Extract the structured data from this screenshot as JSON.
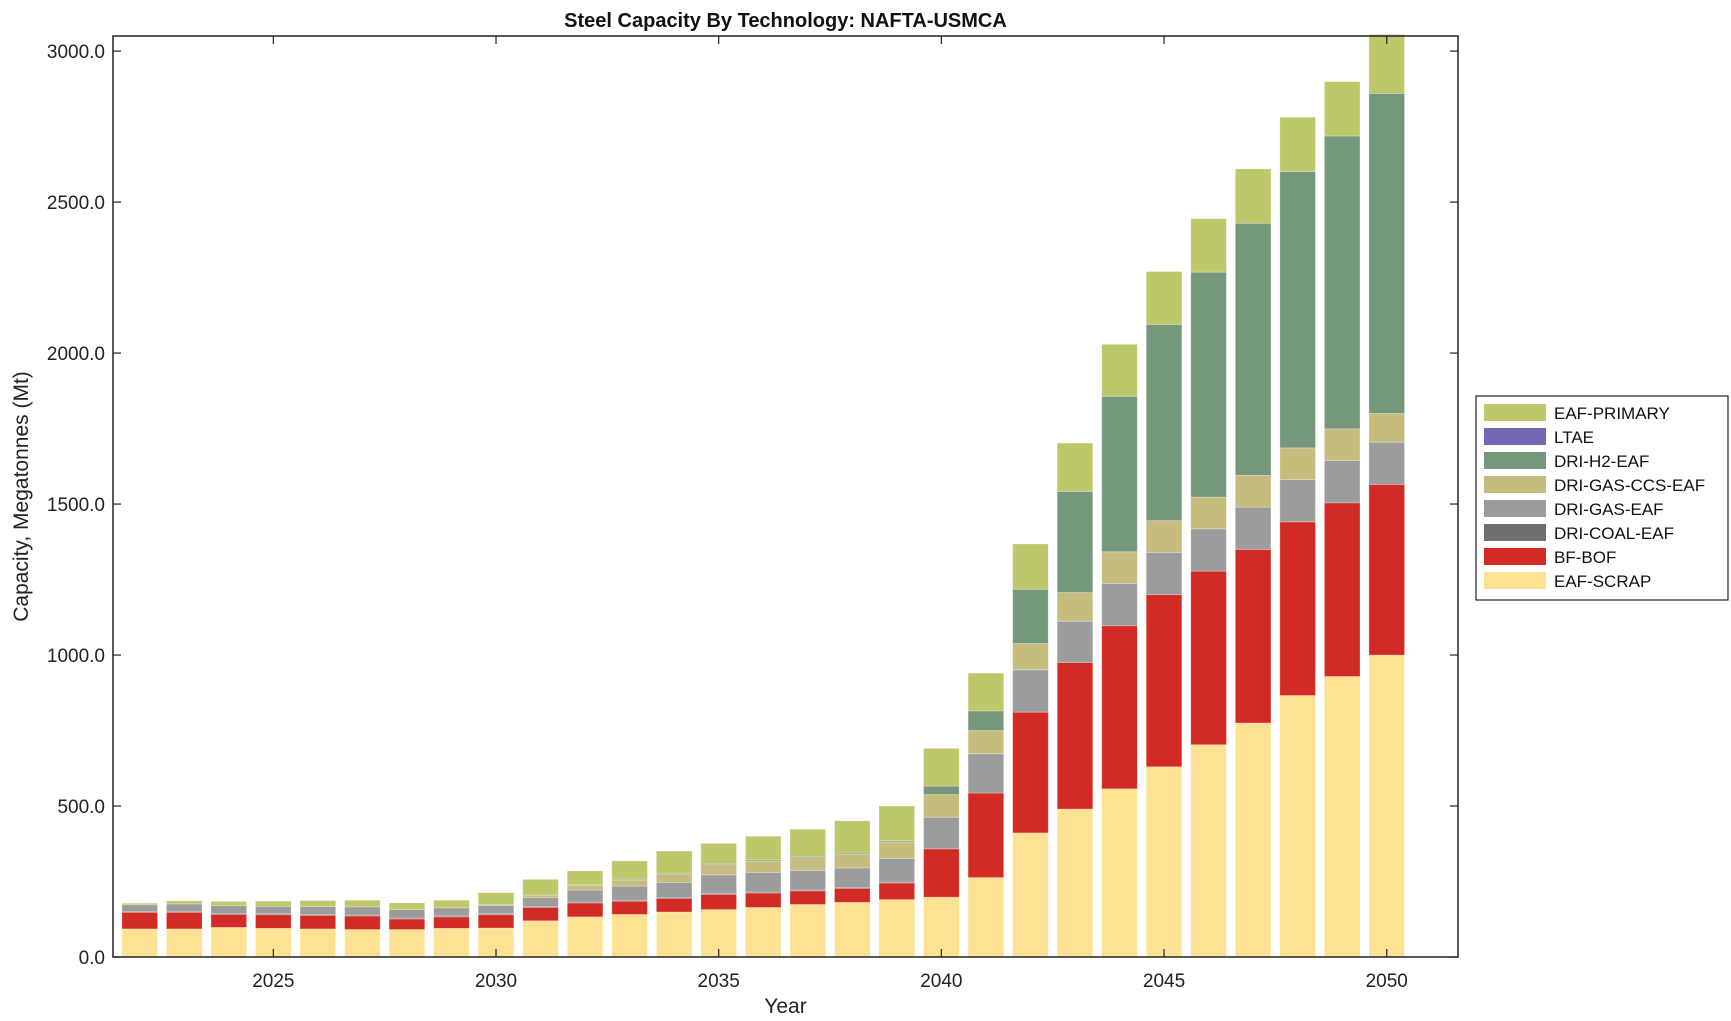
{
  "chart_data": {
    "type": "bar",
    "stacked": true,
    "title": "Steel Capacity By Technology: NAFTA-USMCA",
    "xlabel": "Year",
    "ylabel": "Capacity, Megatonnes (Mt)",
    "ylim": [
      0,
      3050
    ],
    "yticks": [
      0,
      500,
      1000,
      1500,
      2000,
      2500,
      3000
    ],
    "ytick_labels": [
      "0.0",
      "500.0",
      "1000.0",
      "1500.0",
      "2000.0",
      "2500.0",
      "3000.0"
    ],
    "xlim": [
      2021.4,
      2051.6
    ],
    "xticks": [
      2025,
      2030,
      2035,
      2040,
      2045,
      2050
    ],
    "xtick_labels": [
      "2025",
      "2030",
      "2035",
      "2040",
      "2045",
      "2050"
    ],
    "grid": false,
    "legend_position": "right",
    "categories": [
      2022,
      2023,
      2024,
      2025,
      2026,
      2027,
      2028,
      2029,
      2030,
      2031,
      2032,
      2033,
      2034,
      2035,
      2036,
      2037,
      2038,
      2039,
      2040,
      2041,
      2042,
      2043,
      2044,
      2045,
      2046,
      2047,
      2048,
      2049,
      2050
    ],
    "series": [
      {
        "name": "EAF-SCRAP",
        "color": "#FDE293",
        "values": [
          93,
          93,
          98,
          95,
          93,
          91,
          91,
          95,
          96,
          120,
          133,
          141,
          149,
          157,
          164,
          174,
          181,
          190,
          198,
          263,
          411,
          490,
          557,
          630,
          703,
          775,
          866,
          929,
          1000
        ]
      },
      {
        "name": "BF-BOF",
        "color": "#D22A24",
        "values": [
          55,
          55,
          43,
          45,
          45,
          45,
          35,
          38,
          44,
          44,
          46,
          44,
          45,
          50,
          48,
          45,
          46,
          55,
          160,
          280,
          400,
          485,
          540,
          570,
          575,
          575,
          575,
          575,
          565
        ]
      },
      {
        "name": "DRI-COAL-EAF",
        "color": "#707070",
        "values": [
          3,
          3,
          3,
          3,
          3,
          3,
          3,
          3,
          3,
          3,
          3,
          3,
          3,
          3,
          3,
          3,
          3,
          3,
          0,
          0,
          0,
          0,
          0,
          0,
          0,
          0,
          0,
          0,
          0
        ]
      },
      {
        "name": "DRI-GAS-EAF",
        "color": "#9C9C9C",
        "values": [
          22,
          25,
          26,
          25,
          26,
          27,
          28,
          27,
          28,
          30,
          40,
          47,
          50,
          62,
          65,
          65,
          65,
          78,
          105,
          130,
          140,
          137,
          140,
          140,
          140,
          140,
          140,
          140,
          140
        ]
      },
      {
        "name": "DRI-GAS-CCS-EAF",
        "color": "#C6BC7E",
        "values": [
          0,
          0,
          0,
          0,
          0,
          0,
          0,
          0,
          2,
          8,
          15,
          20,
          28,
          34,
          38,
          42,
          45,
          55,
          75,
          77,
          87,
          95,
          105,
          105,
          105,
          105,
          105,
          105,
          95
        ]
      },
      {
        "name": "DRI-H2-EAF",
        "color": "#75987C",
        "values": [
          0,
          0,
          0,
          0,
          0,
          0,
          0,
          0,
          0,
          0,
          2,
          3,
          3,
          4,
          4,
          4,
          4,
          4,
          28,
          65,
          180,
          335,
          515,
          650,
          745,
          835,
          915,
          970,
          1060
        ]
      },
      {
        "name": "LTAE",
        "color": "#7268B6",
        "values": [
          0,
          0,
          0,
          0,
          0,
          0,
          0,
          0,
          0,
          0,
          0,
          0,
          0,
          0,
          0,
          0,
          0,
          0,
          0,
          0,
          0,
          0,
          0,
          0,
          0,
          0,
          0,
          0,
          0
        ]
      },
      {
        "name": "EAF-PRIMARY",
        "color": "#BEC76A",
        "values": [
          5,
          10,
          14,
          17,
          20,
          22,
          22,
          25,
          40,
          52,
          46,
          60,
          73,
          66,
          78,
          90,
          107,
          115,
          125,
          125,
          150,
          160,
          172,
          175,
          177,
          180,
          180,
          180,
          195
        ]
      }
    ],
    "legend_order": [
      "EAF-PRIMARY",
      "LTAE",
      "DRI-H2-EAF",
      "DRI-GAS-CCS-EAF",
      "DRI-GAS-EAF",
      "DRI-COAL-EAF",
      "BF-BOF",
      "EAF-SCRAP"
    ]
  }
}
